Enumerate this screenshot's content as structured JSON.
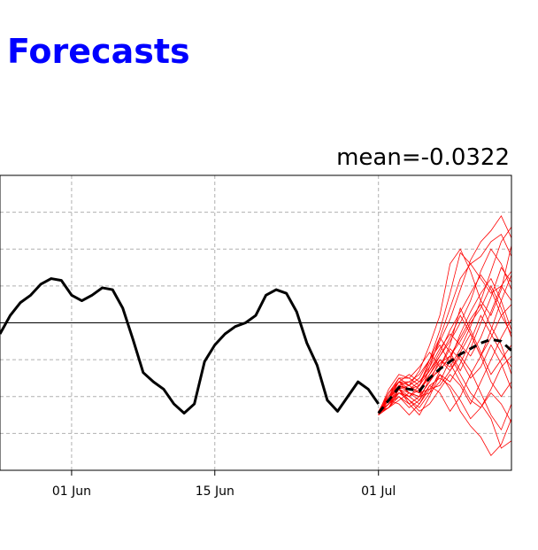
{
  "page": {
    "title": "Forecasts"
  },
  "chart_data": {
    "type": "line",
    "title": "mean=-0.0322",
    "xlabel": "",
    "ylabel": "",
    "x_tick_labels": [
      "01 Jun",
      "15 Jun",
      "01 Jul"
    ],
    "x_tick_dates": [
      "2024-06-01",
      "2024-06-15",
      "2024-07-01"
    ],
    "x_range": [
      "2024-05-25",
      "2024-07-14"
    ],
    "y_range": [
      -4,
      4
    ],
    "y_gridlines": [
      -3,
      -2,
      -1,
      1,
      2,
      3
    ],
    "zero_line": 0,
    "grid": true,
    "colors": {
      "observed": "#000000",
      "ensemble": "#ff0000",
      "ensemble_mean": "#000000",
      "grid": "#b0b0b0",
      "title": "#0000ff"
    },
    "observed": {
      "x": [
        "2024-05-25",
        "2024-05-26",
        "2024-05-27",
        "2024-05-28",
        "2024-05-29",
        "2024-05-30",
        "2024-05-31",
        "2024-06-01",
        "2024-06-02",
        "2024-06-03",
        "2024-06-04",
        "2024-06-05",
        "2024-06-06",
        "2024-06-07",
        "2024-06-08",
        "2024-06-09",
        "2024-06-10",
        "2024-06-11",
        "2024-06-12",
        "2024-06-13",
        "2024-06-14",
        "2024-06-15",
        "2024-06-16",
        "2024-06-17",
        "2024-06-18",
        "2024-06-19",
        "2024-06-20",
        "2024-06-21",
        "2024-06-22",
        "2024-06-23",
        "2024-06-24",
        "2024-06-25",
        "2024-06-26",
        "2024-06-27",
        "2024-06-28",
        "2024-06-29",
        "2024-06-30",
        "2024-07-01"
      ],
      "y": [
        -0.3,
        0.2,
        0.55,
        0.75,
        1.05,
        1.2,
        1.15,
        0.75,
        0.6,
        0.75,
        0.95,
        0.9,
        0.4,
        -0.45,
        -1.35,
        -1.6,
        -1.8,
        -2.2,
        -2.45,
        -2.2,
        -1.05,
        -0.6,
        -0.3,
        -0.1,
        0.0,
        0.2,
        0.75,
        0.9,
        0.8,
        0.3,
        -0.55,
        -1.15,
        -2.1,
        -2.4,
        -2.0,
        -1.6,
        -1.8,
        -2.2
      ]
    },
    "ensemble_mean": {
      "x": [
        "2024-07-01",
        "2024-07-02",
        "2024-07-03",
        "2024-07-04",
        "2024-07-05",
        "2024-07-06",
        "2024-07-07",
        "2024-07-08",
        "2024-07-09",
        "2024-07-10",
        "2024-07-11",
        "2024-07-12",
        "2024-07-13",
        "2024-07-14"
      ],
      "y": [
        -2.45,
        -2.1,
        -1.75,
        -1.8,
        -1.85,
        -1.5,
        -1.25,
        -1.05,
        -0.85,
        -0.7,
        -0.55,
        -0.45,
        -0.5,
        -0.75
      ]
    },
    "ensemble_members": {
      "x": [
        "2024-07-01",
        "2024-07-02",
        "2024-07-03",
        "2024-07-04",
        "2024-07-05",
        "2024-07-06",
        "2024-07-07",
        "2024-07-08",
        "2024-07-09",
        "2024-07-10",
        "2024-07-11",
        "2024-07-12",
        "2024-07-13",
        "2024-07-14"
      ],
      "series": [
        {
          "values": [
            -2.45,
            -2.0,
            -1.7,
            -1.9,
            -2.0,
            -1.2,
            -0.4,
            0.4,
            1.2,
            1.6,
            1.8,
            2.2,
            2.4,
            1.8
          ]
        },
        {
          "values": [
            -2.4,
            -2.2,
            -1.8,
            -2.0,
            -1.7,
            -1.0,
            -0.2,
            0.8,
            1.9,
            1.6,
            1.2,
            0.8,
            1.0,
            1.4
          ]
        },
        {
          "values": [
            -2.5,
            -1.9,
            -1.5,
            -1.7,
            -1.3,
            -0.6,
            0.2,
            1.6,
            2.0,
            1.4,
            0.6,
            0.2,
            0.9,
            2.1
          ]
        },
        {
          "values": [
            -2.45,
            -2.1,
            -1.6,
            -1.8,
            -1.9,
            -1.4,
            -0.9,
            -0.5,
            0.0,
            0.6,
            1.4,
            2.0,
            1.6,
            0.9
          ]
        },
        {
          "values": [
            -2.45,
            -2.3,
            -1.9,
            -2.1,
            -2.3,
            -1.9,
            -1.6,
            -1.0,
            -0.3,
            0.3,
            0.8,
            1.2,
            0.6,
            -0.2
          ]
        },
        {
          "values": [
            -2.4,
            -2.0,
            -1.8,
            -2.2,
            -2.5,
            -2.0,
            -1.4,
            -1.6,
            -1.1,
            -0.5,
            0.2,
            -0.3,
            -0.8,
            -1.2
          ]
        },
        {
          "values": [
            -2.5,
            -2.2,
            -2.0,
            -2.3,
            -2.1,
            -1.7,
            -1.9,
            -2.4,
            -2.0,
            -1.4,
            -0.9,
            -0.4,
            0.2,
            0.5
          ]
        },
        {
          "values": [
            -2.45,
            -1.8,
            -1.4,
            -1.5,
            -1.2,
            -0.8,
            -1.2,
            -0.6,
            0.4,
            -0.2,
            -0.8,
            -1.4,
            -1.0,
            -0.6
          ]
        },
        {
          "values": [
            -2.45,
            -2.1,
            -2.2,
            -2.5,
            -2.2,
            -1.8,
            -1.4,
            -1.8,
            -2.4,
            -2.8,
            -3.1,
            -3.6,
            -3.3,
            -2.6
          ]
        },
        {
          "values": [
            -2.4,
            -1.9,
            -1.6,
            -1.4,
            -1.6,
            -1.3,
            -0.8,
            -0.2,
            0.3,
            0.8,
            1.3,
            0.9,
            0.2,
            -0.3
          ]
        },
        {
          "values": [
            -2.5,
            -2.3,
            -2.1,
            -1.9,
            -2.0,
            -1.6,
            -1.0,
            -1.2,
            -0.7,
            -0.1,
            0.6,
            1.4,
            2.2,
            2.6
          ]
        },
        {
          "values": [
            -2.45,
            -2.0,
            -1.6,
            -1.9,
            -2.1,
            -1.5,
            -1.1,
            -0.9,
            -1.4,
            -1.9,
            -2.2,
            -2.6,
            -3.4,
            -3.2
          ]
        },
        {
          "values": [
            -2.4,
            -2.2,
            -1.7,
            -1.6,
            -1.4,
            -1.0,
            -0.6,
            -1.1,
            -1.6,
            -2.1,
            -2.3,
            -1.8,
            -1.2,
            -0.9
          ]
        },
        {
          "values": [
            -2.5,
            -2.1,
            -1.9,
            -2.0,
            -1.8,
            -1.5,
            -1.3,
            -0.9,
            -0.4,
            0.1,
            0.5,
            -0.1,
            -0.6,
            -1.4
          ]
        },
        {
          "values": [
            -2.45,
            -2.2,
            -1.8,
            -1.7,
            -1.9,
            -1.8,
            -1.7,
            -1.3,
            -0.9,
            -1.3,
            -1.9,
            -2.5,
            -2.9,
            -2.2
          ]
        },
        {
          "values": [
            -2.4,
            -2.0,
            -1.5,
            -1.5,
            -1.7,
            -1.1,
            -0.5,
            0.1,
            0.9,
            1.7,
            2.2,
            2.5,
            2.9,
            2.3
          ]
        },
        {
          "values": [
            -2.5,
            -2.0,
            -1.8,
            -2.1,
            -2.4,
            -2.2,
            -1.8,
            -1.4,
            -1.7,
            -2.2,
            -1.6,
            -1.0,
            -0.4,
            0.1
          ]
        },
        {
          "values": [
            -2.45,
            -2.1,
            -1.7,
            -1.8,
            -1.6,
            -1.2,
            -0.7,
            -0.3,
            -0.6,
            -0.9,
            -0.4,
            0.3,
            1.0,
            0.6
          ]
        },
        {
          "values": [
            -2.4,
            -2.3,
            -2.0,
            -2.2,
            -2.0,
            -1.6,
            -1.2,
            -0.7,
            -1.0,
            -1.5,
            -1.2,
            -0.6,
            -1.1,
            -1.8
          ]
        },
        {
          "values": [
            -2.5,
            -1.9,
            -1.6,
            -1.7,
            -1.5,
            -1.0,
            -0.4,
            -0.8,
            -1.3,
            -0.7,
            0.0,
            0.7,
            1.5,
            1.1
          ]
        },
        {
          "values": [
            -2.45,
            -2.2,
            -1.9,
            -2.0,
            -2.2,
            -1.7,
            -1.5,
            -1.7,
            -2.1,
            -2.6,
            -2.3,
            -1.9,
            -2.2,
            -2.7
          ]
        },
        {
          "values": [
            -2.4,
            -2.1,
            -1.7,
            -1.8,
            -1.7,
            -1.3,
            -0.9,
            -0.4,
            0.2,
            -0.3,
            -0.9,
            -0.2,
            0.6,
            1.3
          ]
        },
        {
          "values": [
            -2.5,
            -2.0,
            -1.6,
            -1.6,
            -1.8,
            -1.4,
            -1.0,
            -1.3,
            -0.8,
            -0.3,
            -0.9,
            -1.6,
            -2.0,
            -1.6
          ]
        },
        {
          "values": [
            -2.45,
            -2.3,
            -1.8,
            -1.9,
            -2.0,
            -1.9,
            -1.3,
            -0.9,
            -0.5,
            0.0,
            0.4,
            1.0,
            0.4,
            -0.4
          ]
        }
      ]
    }
  }
}
